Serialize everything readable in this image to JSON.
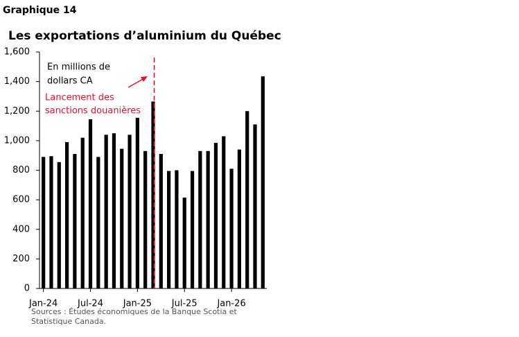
{
  "header": "Graphique 14",
  "chart_data": {
    "type": "bar",
    "title": "Les exportations d’aluminium du Québec",
    "categories": [
      "Jan-24",
      null,
      null,
      null,
      null,
      null,
      "Jul-24",
      null,
      null,
      null,
      null,
      null,
      "Jan-25",
      null,
      null,
      null,
      null,
      null,
      "Jul-25",
      null,
      null,
      null,
      null,
      null,
      "Jan-26",
      null,
      null,
      null,
      null
    ],
    "values": [
      890,
      895,
      855,
      990,
      910,
      1020,
      1145,
      890,
      1040,
      1050,
      945,
      1040,
      1155,
      930,
      1265,
      910,
      795,
      800,
      615,
      795,
      930,
      930,
      985,
      1030,
      810,
      940,
      1200,
      1110,
      1435
    ],
    "color": "#000000",
    "ylim": [
      0,
      1600
    ],
    "yticks": [
      0,
      200,
      400,
      600,
      800,
      {
        "value": 1000,
        "label": "1,000"
      },
      {
        "value": 1200,
        "label": "1,200"
      },
      {
        "value": 1400,
        "label": "1,400"
      },
      {
        "value": 1600,
        "label": "1,600"
      }
    ],
    "unit_note": [
      "En millions de",
      "dollars CA"
    ],
    "event": {
      "lines": [
        "Lancement des",
        "sanctions douanières"
      ],
      "index": 14,
      "color": "#e8112d"
    }
  },
  "source": [
    "Sources : Études économiques de la Banque Scotia et",
    "Statistique Canada."
  ]
}
